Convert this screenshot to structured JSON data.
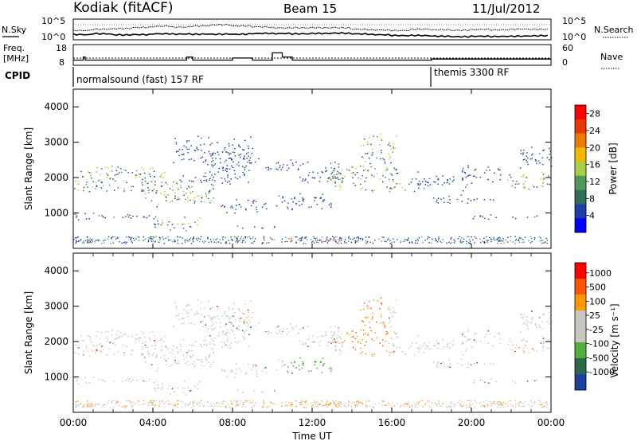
{
  "header": {
    "station": "Kodiak (fitACF)",
    "beam": "Beam 15",
    "date": "11/Jul/2012"
  },
  "noise_panel": {
    "left_label": "N.Sky",
    "right_label": "N.Search",
    "left_ticks": [
      "10^5",
      "10^0"
    ],
    "right_ticks": [
      "10^5",
      "10^0"
    ]
  },
  "freq_panel": {
    "left_label_line1": "Freq.",
    "left_label_line2": "[MHz]",
    "right_label": "Nave",
    "left_ticks": [
      "18",
      "8"
    ],
    "right_ticks": [
      "60",
      "0"
    ]
  },
  "cpid_panel": {
    "label": "CPID",
    "program_1": "normalsound (fast) 157 RF",
    "program_2": "themis 3300 RF"
  },
  "time_axis": {
    "label": "Time UT",
    "ticks": [
      "00:00",
      "04:00",
      "08:00",
      "12:00",
      "16:00",
      "20:00",
      "00:00"
    ]
  },
  "colors": {
    "power_scale": [
      "#0000ff",
      "#1f3fa8",
      "#2e6e5a",
      "#4e9a59",
      "#a9cf43",
      "#f5b800",
      "#ee7a00",
      "#e43a00",
      "#ff0000"
    ],
    "velocity_scale": [
      "#2040a0",
      "#2a6a4a",
      "#50b040",
      "#c8c8c0",
      "#c8c8c0",
      "#ff9900",
      "#ff5500",
      "#ff0000"
    ]
  },
  "chart_data": [
    {
      "type": "line",
      "panel": "noise",
      "x_range": [
        0,
        24
      ],
      "yscale": "log",
      "ylim": [
        1,
        100000
      ],
      "series": [
        {
          "values_log10": [
            1.3,
            1.6,
            1.4,
            1.5,
            1.7,
            1.6,
            1.5,
            1.4,
            1.3,
            1.4,
            1.3,
            1.2,
            1.3,
            1.4,
            1.3,
            1.2,
            1.1,
            1.2,
            1.1,
            1.0,
            1.1,
            1.0,
            1.0,
            1.0
          ]
        },
        {
          "values_log10": [
            2.5,
            2.8,
            2.9,
            3.1,
            3.3,
            3.0,
            3.2,
            3.4,
            3.1,
            2.9,
            2.7,
            2.8,
            2.9,
            3.0,
            2.7,
            2.6,
            2.5,
            2.8,
            2.6,
            2.4,
            2.5,
            2.3,
            2.4,
            2.3
          ]
        }
      ]
    },
    {
      "type": "line",
      "panel": "frequency",
      "x_range": [
        0,
        24
      ],
      "ylim": [
        8,
        18
      ],
      "series": [
        {
          "hours": [
            0,
            0.5,
            0.6,
            5,
            5.7,
            6,
            7.3,
            8,
            9,
            9.8,
            10,
            10.5,
            11,
            12,
            17.8,
            18,
            24
          ],
          "values": [
            10.5,
            12,
            10.5,
            10.5,
            12,
            10.5,
            10.5,
            11.5,
            10.5,
            10.5,
            14,
            12,
            10.5,
            10.5,
            10.5,
            11,
            11
          ]
        }
      ]
    },
    {
      "type": "heatmap",
      "panel": "power",
      "ylabel": "Slant Range [km]",
      "xlabel": "",
      "ylim": [
        0,
        4500
      ],
      "yticks": [
        1000,
        2000,
        3000,
        4000
      ],
      "colorbar_label": "Power [dB]",
      "colorbar_ticks": [
        4,
        8,
        12,
        16,
        20,
        24,
        28
      ],
      "colorbar_range": [
        0,
        30
      ]
    },
    {
      "type": "heatmap",
      "panel": "velocity",
      "ylabel": "Slant Range [km]",
      "xlabel": "Time UT",
      "ylim": [
        0,
        4500
      ],
      "yticks": [
        1000,
        2000,
        3000,
        4000
      ],
      "colorbar_label": "Velocity [m s⁻¹]",
      "colorbar_ticks": [
        "1000",
        "500",
        "100",
        "25",
        "-25",
        "-100",
        "-500",
        "-1000"
      ]
    }
  ]
}
